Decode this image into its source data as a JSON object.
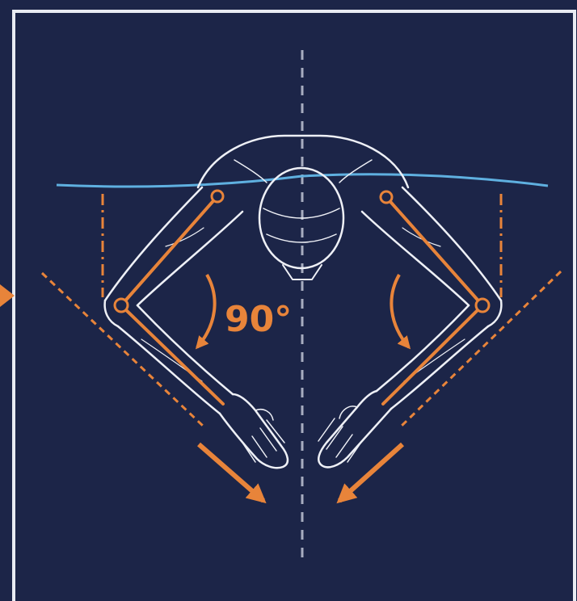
{
  "angle_label": "90°",
  "colors": {
    "background": "#1c2548",
    "frame": "#e8ebf2",
    "figure_outline": "#eef0f6",
    "accent": "#e8843a",
    "shoulder_line": "#5fb0e0",
    "centerline": "#a7adc0"
  },
  "icons": {
    "side_marker": "triangle-right",
    "motion_arrows": "arrow-down-diagonal"
  }
}
